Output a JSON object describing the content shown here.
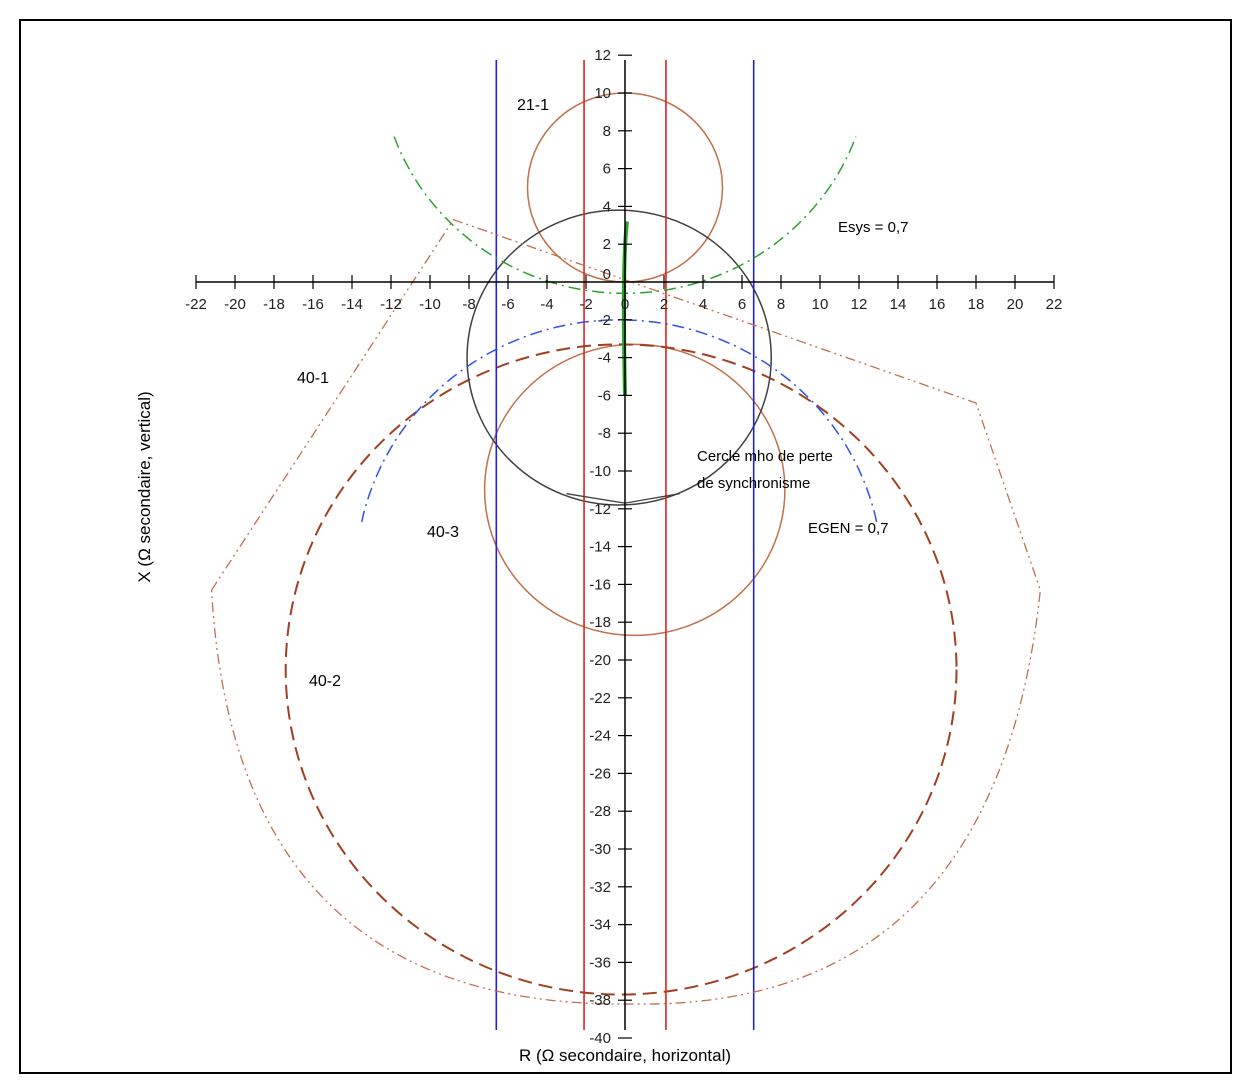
{
  "chart_data": {
    "type": "line",
    "xlabel": "R (Ω secondaire, horizontal)",
    "ylabel": "X (Ω secondaire, vertical)",
    "xlim": [
      -22,
      22
    ],
    "ylim": [
      -40,
      12
    ],
    "x_ticks": [
      -22,
      -20,
      -18,
      -16,
      -14,
      -12,
      -10,
      -8,
      -6,
      -4,
      -2,
      0,
      2,
      4,
      6,
      8,
      10,
      12,
      14,
      16,
      18,
      20,
      22
    ],
    "y_ticks": [
      12,
      10,
      8,
      6,
      4,
      2,
      0,
      -2,
      -4,
      -6,
      -8,
      -10,
      -12,
      -14,
      -16,
      -18,
      -20,
      -22,
      -24,
      -26,
      -28,
      -30,
      -32,
      -34,
      -36,
      -38,
      -40
    ],
    "grid": false,
    "colors": {
      "circle_brown": "#c0704a",
      "mho_black": "#404040",
      "blinder_blue": "#2020e0",
      "blinder_red": "#e02020",
      "green": "#2ca02c",
      "blue_dash": "#3050f0",
      "dashed_brown": "#a04020",
      "dotted_brown": "#c07050"
    },
    "series": [
      {
        "label": "21-1",
        "kind": "circle",
        "center": [
          0,
          5
        ],
        "radius": 5
      },
      {
        "label": "40-3",
        "kind": "circle",
        "center": [
          0.5,
          -11
        ],
        "radius": 7.7
      },
      {
        "label": "40-2",
        "kind": "circle-dashed",
        "center": [
          -0.2,
          -20.5
        ],
        "radius": 17.2
      },
      {
        "label": "Cercle mho de perte de synchronisme",
        "kind": "circle",
        "center": [
          -0.3,
          -4
        ],
        "radius": 7.8
      },
      {
        "kind": "vertical-line",
        "x": -6.6
      },
      {
        "kind": "vertical-line",
        "x": 6.6
      },
      {
        "kind": "vertical-line",
        "x": -2.1
      },
      {
        "kind": "vertical-line",
        "x": 2.1
      },
      {
        "kind": "segment",
        "points": [
          [
            0.1,
            3.2
          ],
          [
            0,
            -6
          ]
        ]
      },
      {
        "label": "Esys = 0,7",
        "kind": "arc",
        "center": [
          0,
          12
        ],
        "radius": 12.6,
        "from_deg": 200,
        "to_deg": 340
      },
      {
        "label": "EGEN = 0,7",
        "kind": "arc",
        "center": [
          -0.3,
          -15.5
        ],
        "radius": 13.5,
        "from_deg": 12,
        "to_deg": 168
      },
      {
        "label": "40-1",
        "kind": "polyline",
        "points": [
          [
            -8.8,
            3.3
          ],
          [
            18,
            -6.4
          ],
          [
            21.3,
            -16.3
          ],
          [
            0.4,
            -38.2
          ],
          [
            -21.2,
            -16.3
          ]
        ]
      }
    ],
    "annotations": [
      "21-1",
      "Esys = 0,7",
      "40-1",
      "40-3",
      "40-2",
      "Cercle mho de perte",
      "de synchronisme",
      "EGEN = 0,7"
    ]
  }
}
